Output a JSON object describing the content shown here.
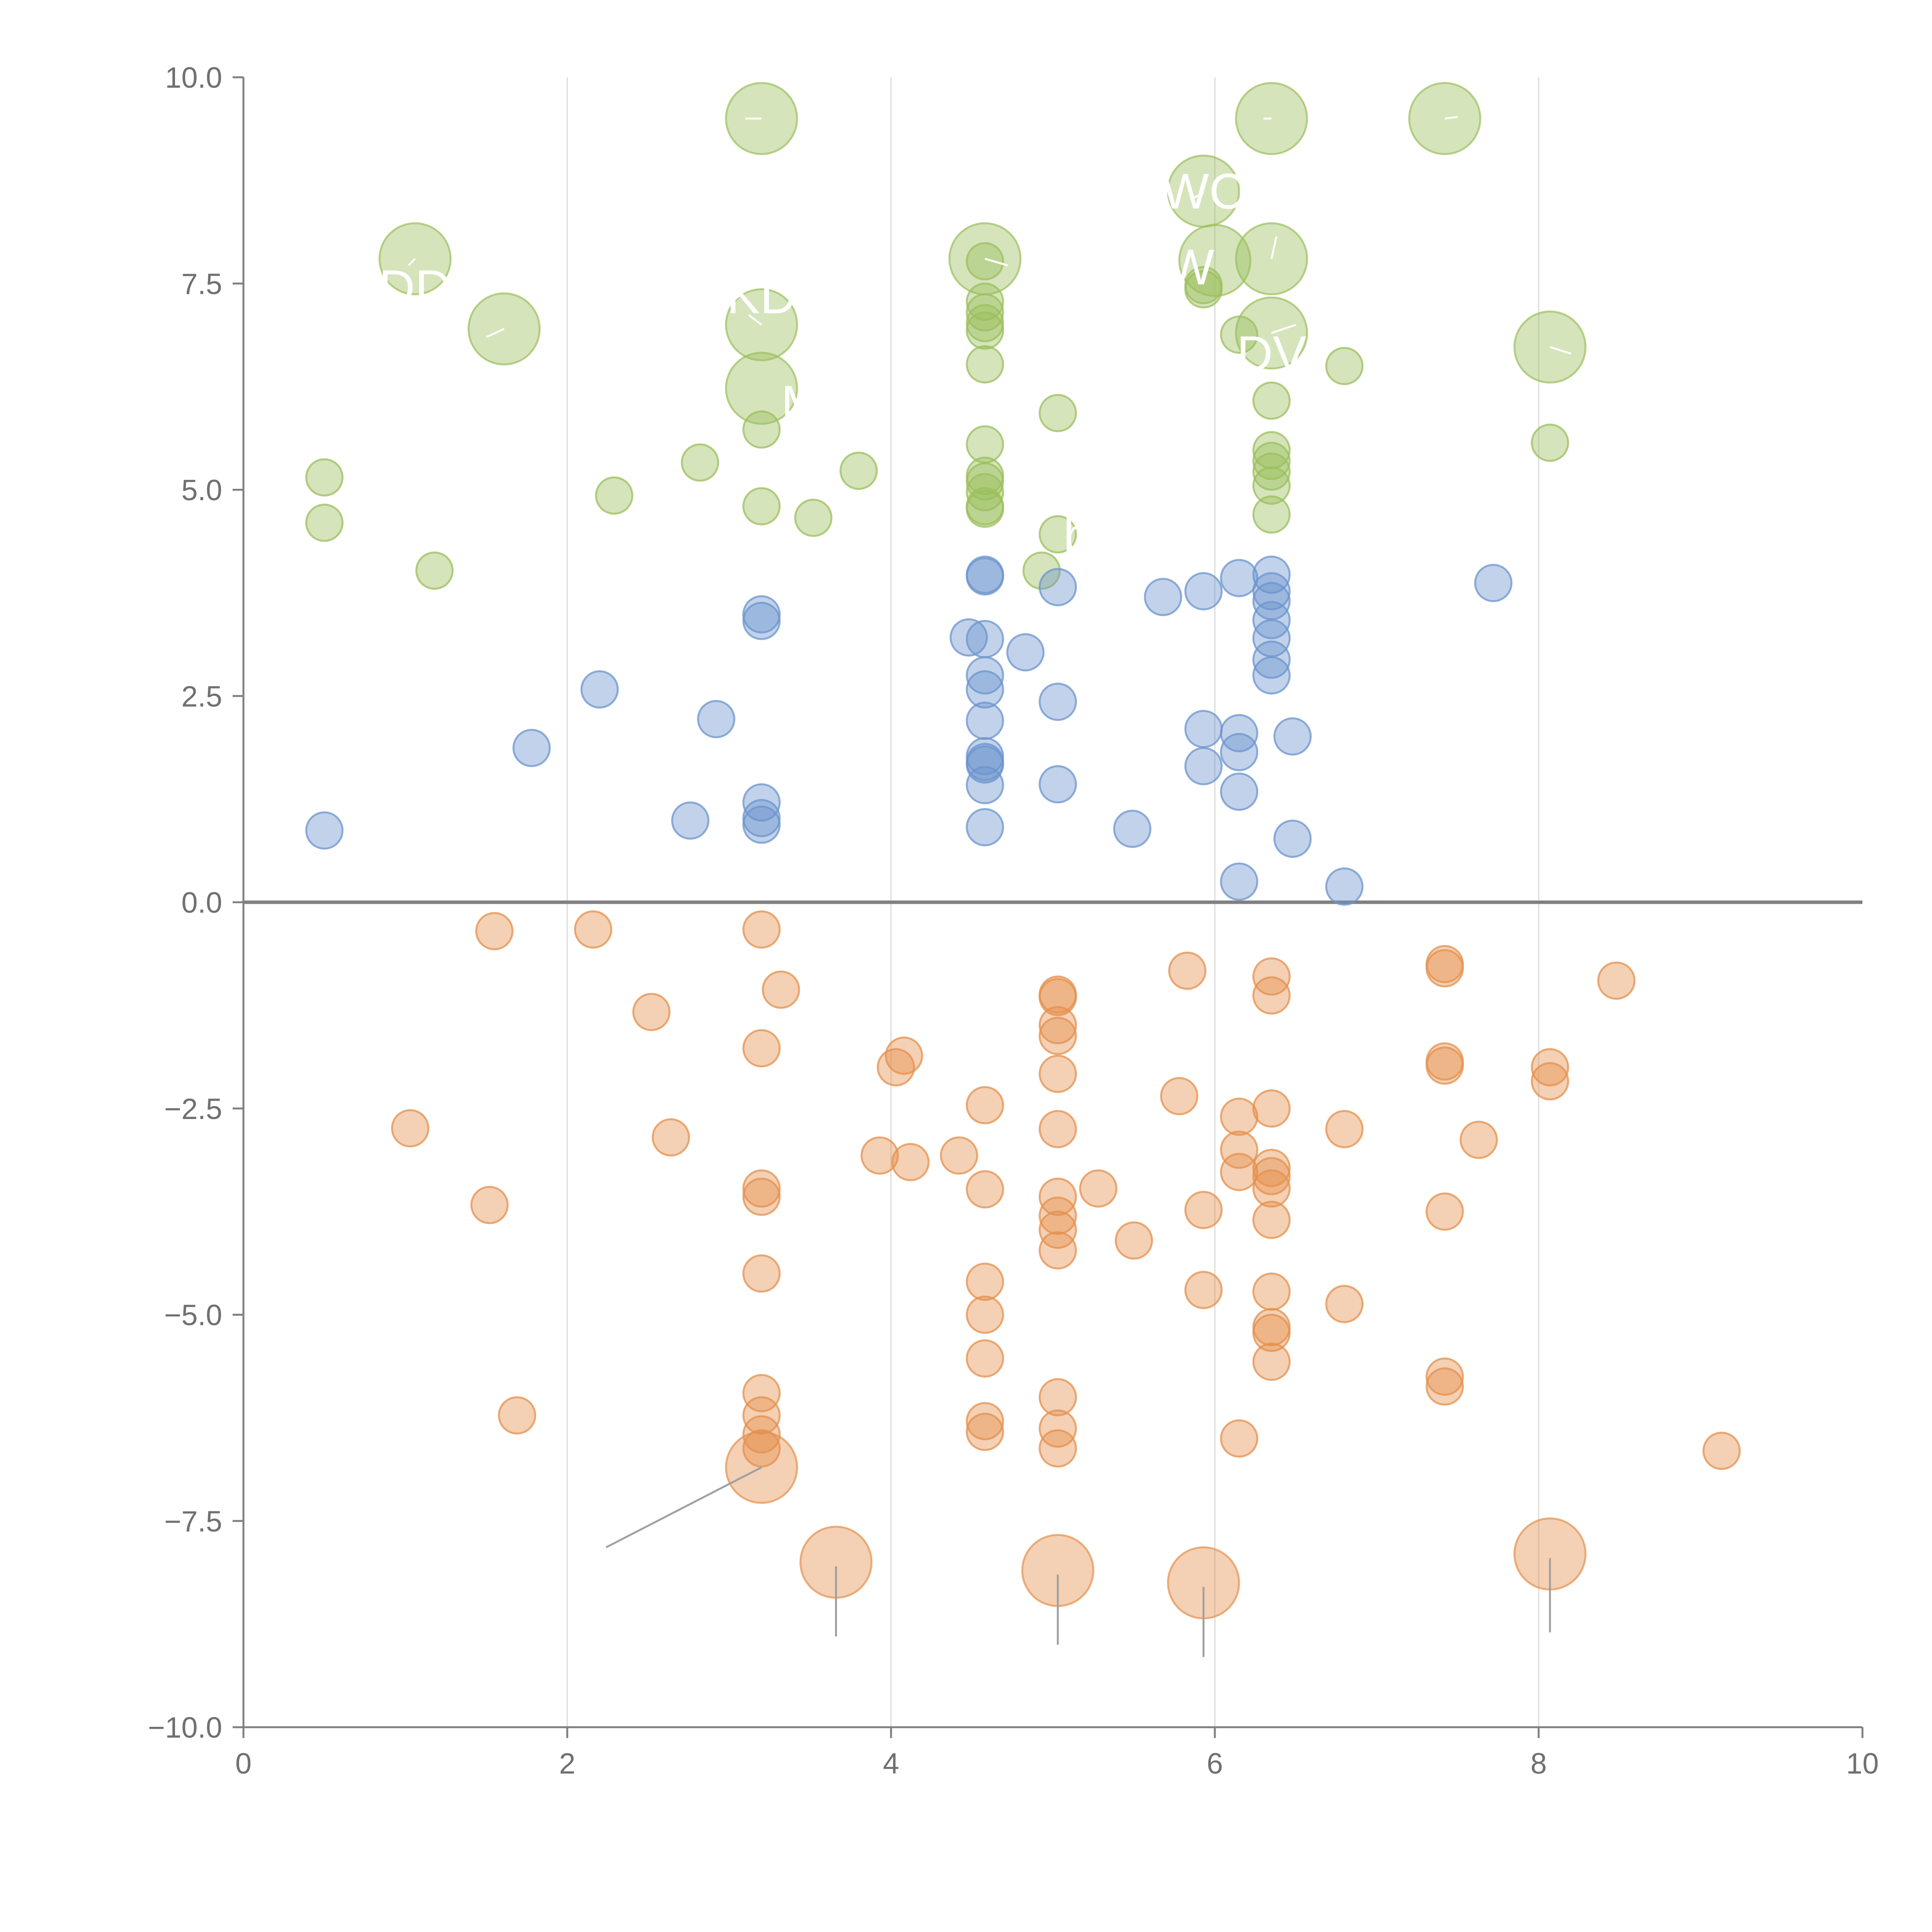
{
  "chart_data": {
    "type": "scatter",
    "title": "",
    "xlabel": "",
    "ylabel": "",
    "xlim": [
      0,
      10
    ],
    "ylim": [
      -10,
      10
    ],
    "x_ticks": [
      0,
      2,
      4,
      6,
      8,
      10
    ],
    "y_ticks": [
      -10,
      -7.5,
      -5,
      -2.5,
      0,
      2.5,
      5,
      7.5,
      10
    ],
    "x_tick_labels": [
      "0",
      "2",
      "4",
      "6",
      "8",
      "10"
    ],
    "y_tick_labels": [
      "−10.0",
      "−7.5",
      "−5.0",
      "−2.5",
      "0.0",
      "2.5",
      "5.0",
      "7.5",
      "10.0"
    ],
    "vertical_gridlines_at": [
      2,
      4,
      6,
      8
    ],
    "zero_line": true,
    "colors": {
      "green": "#9bbf5c",
      "blue": "#6b94cd",
      "orange": "#e4904c",
      "axis": "#808080",
      "grid": "#e2e2e2"
    },
    "series": [
      {
        "name": "green",
        "color": "#9bbf5c",
        "points": [
          [
            0.5,
            5.15
          ],
          [
            0.5,
            4.6
          ],
          [
            1.18,
            4.02
          ],
          [
            2.29,
            4.93
          ],
          [
            2.82,
            5.33
          ],
          [
            3.2,
            4.8
          ],
          [
            3.2,
            5.73
          ],
          [
            3.52,
            4.66
          ],
          [
            3.8,
            5.23
          ],
          [
            4.58,
            7.77
          ],
          [
            4.58,
            7.28
          ],
          [
            4.58,
            7.15
          ],
          [
            4.58,
            7.02
          ],
          [
            4.58,
            6.93
          ],
          [
            4.58,
            6.52
          ],
          [
            4.58,
            5.55
          ],
          [
            4.58,
            5.17
          ],
          [
            4.58,
            5.1
          ],
          [
            4.58,
            4.97
          ],
          [
            4.58,
            4.8
          ],
          [
            4.58,
            4.77
          ],
          [
            5.03,
            5.93
          ],
          [
            5.03,
            4.46
          ],
          [
            4.93,
            4.02
          ],
          [
            5.93,
            7.48
          ],
          [
            5.93,
            7.43
          ],
          [
            6.15,
            6.88
          ],
          [
            6.8,
            6.5
          ],
          [
            6.35,
            6.08
          ],
          [
            6.35,
            5.48
          ],
          [
            6.35,
            5.35
          ],
          [
            6.35,
            5.22
          ],
          [
            6.35,
            5.05
          ],
          [
            6.35,
            4.7
          ],
          [
            8.07,
            5.57
          ]
        ],
        "sizes": [
          {
            "x": 1.06,
            "y": 7.8
          },
          {
            "x": 1.61,
            "y": 6.95
          },
          {
            "x": 3.2,
            "y": 9.5
          },
          {
            "x": 3.2,
            "y": 7.0
          },
          {
            "x": 3.2,
            "y": 6.23
          },
          {
            "x": 4.58,
            "y": 7.8
          },
          {
            "x": 5.93,
            "y": 8.62
          },
          {
            "x": 6.0,
            "y": 7.78
          },
          {
            "x": 6.35,
            "y": 9.5
          },
          {
            "x": 6.35,
            "y": 7.8
          },
          {
            "x": 6.35,
            "y": 6.9
          },
          {
            "x": 7.42,
            "y": 9.5
          },
          {
            "x": 8.07,
            "y": 6.73
          }
        ]
      },
      {
        "name": "blue",
        "color": "#6b94cd",
        "points": [
          [
            0.5,
            0.87
          ],
          [
            1.78,
            1.87
          ],
          [
            2.2,
            2.58
          ],
          [
            2.76,
            0.99
          ],
          [
            2.92,
            2.22
          ],
          [
            3.2,
            3.49
          ],
          [
            3.2,
            3.41
          ],
          [
            3.2,
            1.21
          ],
          [
            3.2,
            1.02
          ],
          [
            3.2,
            0.94
          ],
          [
            4.48,
            3.21
          ],
          [
            4.58,
            3.97
          ],
          [
            4.58,
            3.95
          ],
          [
            4.58,
            3.19
          ],
          [
            4.58,
            2.75
          ],
          [
            4.58,
            2.58
          ],
          [
            4.58,
            2.2
          ],
          [
            4.58,
            1.77
          ],
          [
            4.58,
            1.7
          ],
          [
            4.58,
            1.67
          ],
          [
            4.58,
            1.42
          ],
          [
            4.58,
            0.91
          ],
          [
            4.83,
            3.03
          ],
          [
            5.03,
            3.82
          ],
          [
            5.03,
            2.43
          ],
          [
            5.03,
            1.43
          ],
          [
            5.49,
            0.89
          ],
          [
            5.68,
            3.7
          ],
          [
            5.93,
            3.77
          ],
          [
            5.93,
            2.1
          ],
          [
            5.93,
            1.65
          ],
          [
            6.15,
            3.93
          ],
          [
            6.15,
            2.05
          ],
          [
            6.15,
            1.82
          ],
          [
            6.15,
            1.34
          ],
          [
            6.15,
            0.25
          ],
          [
            6.35,
            3.97
          ],
          [
            6.35,
            3.77
          ],
          [
            6.35,
            3.65
          ],
          [
            6.35,
            3.42
          ],
          [
            6.35,
            3.2
          ],
          [
            6.35,
            2.94
          ],
          [
            6.35,
            2.75
          ],
          [
            6.48,
            2.01
          ],
          [
            6.48,
            0.77
          ],
          [
            6.8,
            0.19
          ],
          [
            7.72,
            3.87
          ]
        ]
      },
      {
        "name": "orange",
        "color": "#e4904c",
        "points": [
          [
            1.03,
            -2.74
          ],
          [
            1.52,
            -3.67
          ],
          [
            1.55,
            -0.35
          ],
          [
            1.69,
            -6.22
          ],
          [
            2.16,
            -0.33
          ],
          [
            2.52,
            -1.33
          ],
          [
            2.64,
            -2.85
          ],
          [
            3.2,
            -0.33
          ],
          [
            3.2,
            -1.77
          ],
          [
            3.2,
            -3.47
          ],
          [
            3.2,
            -3.57
          ],
          [
            3.2,
            -4.5
          ],
          [
            3.2,
            -5.95
          ],
          [
            3.2,
            -6.22
          ],
          [
            3.2,
            -6.45
          ],
          [
            3.2,
            -6.62
          ],
          [
            3.32,
            -1.06
          ],
          [
            3.93,
            -3.07
          ],
          [
            4.03,
            -2.0
          ],
          [
            4.08,
            -1.86
          ],
          [
            4.12,
            -3.15
          ],
          [
            4.42,
            -3.07
          ],
          [
            4.58,
            -2.46
          ],
          [
            4.58,
            -3.48
          ],
          [
            4.58,
            -4.6
          ],
          [
            4.58,
            -5.0
          ],
          [
            4.58,
            -5.53
          ],
          [
            4.58,
            -6.29
          ],
          [
            4.58,
            -6.42
          ],
          [
            5.03,
            -1.12
          ],
          [
            5.03,
            -1.15
          ],
          [
            5.03,
            -1.49
          ],
          [
            5.03,
            -1.62
          ],
          [
            5.03,
            -2.08
          ],
          [
            5.03,
            -2.75
          ],
          [
            5.03,
            -3.57
          ],
          [
            5.03,
            -3.8
          ],
          [
            5.03,
            -3.97
          ],
          [
            5.03,
            -4.22
          ],
          [
            5.03,
            -6.0
          ],
          [
            5.03,
            -6.38
          ],
          [
            5.03,
            -6.62
          ],
          [
            5.28,
            -3.47
          ],
          [
            5.5,
            -4.1
          ],
          [
            5.78,
            -2.35
          ],
          [
            5.83,
            -0.83
          ],
          [
            5.93,
            -3.73
          ],
          [
            5.93,
            -4.7
          ],
          [
            6.15,
            -2.6
          ],
          [
            6.15,
            -3.0
          ],
          [
            6.15,
            -3.27
          ],
          [
            6.15,
            -6.5
          ],
          [
            6.35,
            -0.9
          ],
          [
            6.35,
            -1.13
          ],
          [
            6.35,
            -2.5
          ],
          [
            6.35,
            -3.22
          ],
          [
            6.35,
            -3.32
          ],
          [
            6.35,
            -3.47
          ],
          [
            6.35,
            -3.85
          ],
          [
            6.35,
            -4.72
          ],
          [
            6.35,
            -5.15
          ],
          [
            6.35,
            -5.22
          ],
          [
            6.35,
            -5.57
          ],
          [
            6.8,
            -2.75
          ],
          [
            6.8,
            -4.87
          ],
          [
            7.42,
            -0.75
          ],
          [
            7.42,
            -0.8
          ],
          [
            7.42,
            -1.93
          ],
          [
            7.42,
            -1.98
          ],
          [
            7.42,
            -3.75
          ],
          [
            7.42,
            -5.75
          ],
          [
            7.42,
            -5.87
          ],
          [
            7.63,
            -2.88
          ],
          [
            8.07,
            -2.0
          ],
          [
            8.07,
            -2.17
          ],
          [
            8.48,
            -0.95
          ],
          [
            9.13,
            -6.65
          ]
        ],
        "sizes": [
          {
            "x": 3.2,
            "y": -6.85
          },
          {
            "x": 3.66,
            "y": -8.0
          },
          {
            "x": 5.03,
            "y": -8.1
          },
          {
            "x": 5.93,
            "y": -8.25
          },
          {
            "x": 8.07,
            "y": -7.9
          }
        ]
      }
    ],
    "labels": [
      {
        "text": "WC",
        "x": 5.93,
        "y": 8.62
      },
      {
        "text": "DV",
        "x": 6.35,
        "y": 6.65
      },
      {
        "text": "DD",
        "x": 1.06,
        "y": 7.45
      },
      {
        "text": "KD",
        "x": 3.2,
        "y": 7.35
      },
      {
        "text": "M",
        "x": 3.45,
        "y": 6.05
      },
      {
        "text": "b",
        "x": 5.15,
        "y": 4.45
      },
      {
        "text": "W",
        "x": 5.85,
        "y": 7.7
      }
    ],
    "leader_lines": [
      {
        "x1": 3.2,
        "y1": -6.85,
        "x2": 2.24,
        "y2": -7.82
      },
      {
        "x1": 3.66,
        "y1": -8.05,
        "x2": 3.66,
        "y2": -8.9
      },
      {
        "x1": 5.03,
        "y1": -8.15,
        "x2": 5.03,
        "y2": -9.0
      },
      {
        "x1": 5.93,
        "y1": -8.3,
        "x2": 5.93,
        "y2": -9.15
      },
      {
        "x1": 8.07,
        "y1": -7.95,
        "x2": 8.07,
        "y2": -8.85
      }
    ],
    "white_leaders": [
      {
        "x1": 3.2,
        "y1": 9.5,
        "x2": 3.1,
        "y2": 9.5
      },
      {
        "x1": 6.35,
        "y1": 9.5,
        "x2": 6.3,
        "y2": 9.5
      },
      {
        "x1": 7.42,
        "y1": 9.5,
        "x2": 7.5,
        "y2": 9.52
      },
      {
        "x1": 5.93,
        "y1": 8.6,
        "x2": 5.85,
        "y2": 8.52
      },
      {
        "x1": 6.35,
        "y1": 7.8,
        "x2": 6.38,
        "y2": 8.07
      },
      {
        "x1": 6.35,
        "y1": 6.9,
        "x2": 6.5,
        "y2": 7.0
      },
      {
        "x1": 8.07,
        "y1": 6.73,
        "x2": 8.2,
        "y2": 6.65
      },
      {
        "x1": 4.58,
        "y1": 7.8,
        "x2": 4.72,
        "y2": 7.72
      },
      {
        "x1": 1.06,
        "y1": 7.8,
        "x2": 1.02,
        "y2": 7.72
      },
      {
        "x1": 1.61,
        "y1": 6.95,
        "x2": 1.5,
        "y2": 6.85
      },
      {
        "x1": 3.2,
        "y1": 7.0,
        "x2": 3.12,
        "y2": 7.12
      }
    ]
  }
}
